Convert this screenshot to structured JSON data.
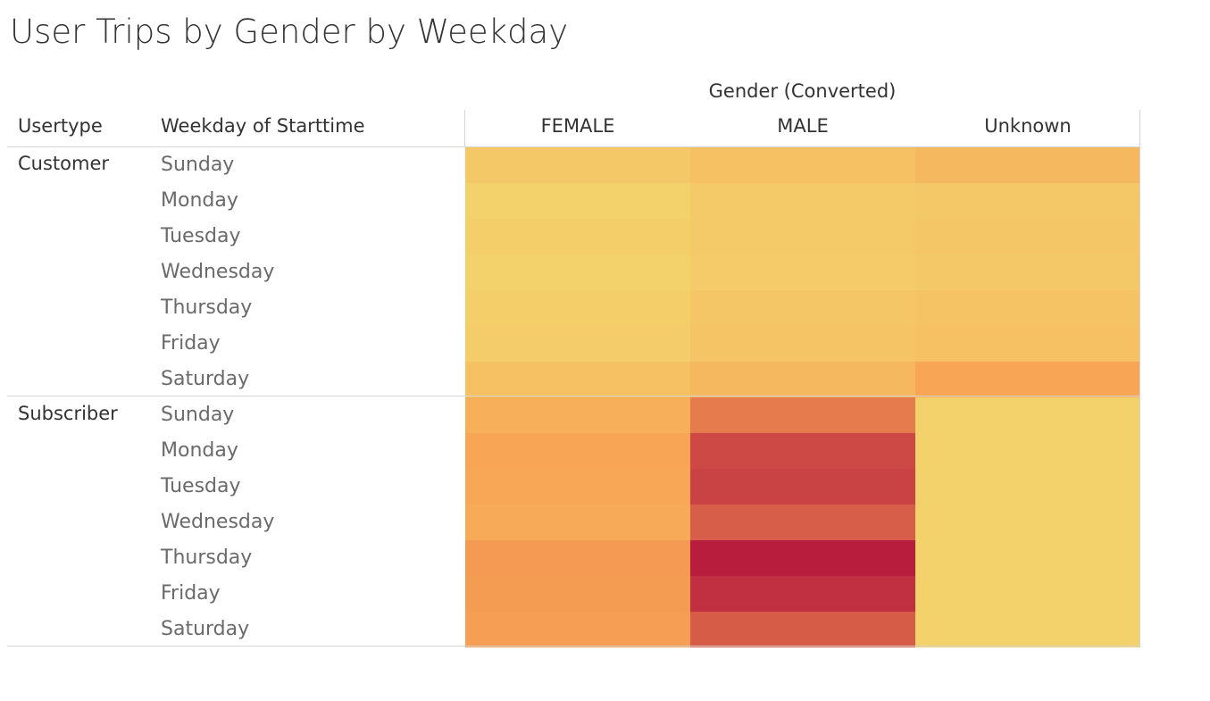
{
  "title": "User Trips by Gender by Weekday",
  "column_group_label": "Gender (Converted)",
  "row_headers": [
    "Usertype",
    "Weekday of Starttime"
  ],
  "chart_data": {
    "type": "heatmap",
    "title": "User Trips by Gender by Weekday",
    "column_field": "Gender (Converted)",
    "row_fields": [
      "Usertype",
      "Weekday of Starttime"
    ],
    "columns": [
      "FEMALE",
      "MALE",
      "Unknown"
    ],
    "color_scale": {
      "low": "#f3d16b",
      "mid": "#f8a254",
      "high": "#b81d3e"
    },
    "groups": [
      {
        "name": "Customer",
        "rows": [
          {
            "label": "Sunday",
            "intensity": [
              0.06,
              0.1,
              0.16
            ]
          },
          {
            "label": "Monday",
            "intensity": [
              0.0,
              0.05,
              0.06
            ]
          },
          {
            "label": "Tuesday",
            "intensity": [
              0.02,
              0.05,
              0.07
            ]
          },
          {
            "label": "Wednesday",
            "intensity": [
              0.0,
              0.04,
              0.06
            ]
          },
          {
            "label": "Thursday",
            "intensity": [
              0.02,
              0.07,
              0.09
            ]
          },
          {
            "label": "Friday",
            "intensity": [
              0.03,
              0.08,
              0.1
            ]
          },
          {
            "label": "Saturday",
            "intensity": [
              0.1,
              0.16,
              0.28
            ]
          }
        ]
      },
      {
        "name": "Subscriber",
        "rows": [
          {
            "label": "Sunday",
            "intensity": [
              0.22,
              0.5,
              0.0
            ]
          },
          {
            "label": "Monday",
            "intensity": [
              0.28,
              0.77,
              0.0
            ]
          },
          {
            "label": "Tuesday",
            "intensity": [
              0.27,
              0.8,
              0.0
            ]
          },
          {
            "label": "Wednesday",
            "intensity": [
              0.24,
              0.66,
              0.0
            ]
          },
          {
            "label": "Thursday",
            "intensity": [
              0.34,
              1.0,
              0.0
            ]
          },
          {
            "label": "Friday",
            "intensity": [
              0.33,
              0.9,
              0.0
            ]
          },
          {
            "label": "Saturday",
            "intensity": [
              0.32,
              0.67,
              0.0
            ]
          }
        ]
      }
    ]
  }
}
